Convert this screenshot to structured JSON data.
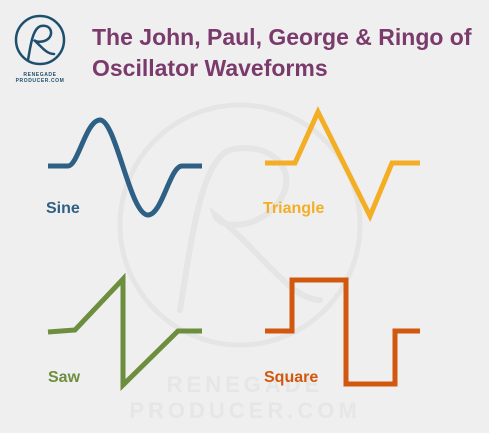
{
  "header": {
    "title_line1": "The John, Paul, George & Ringo of",
    "title_line2": "Oscillator Waveforms"
  },
  "logo": {
    "text": "RENEGADE PRODUCER.COM"
  },
  "watermark": {
    "text": "RENEGADE PRODUCER.COM"
  },
  "waveforms": [
    {
      "name": "Sine",
      "color": "#2e5f85",
      "icon": "sine-wave"
    },
    {
      "name": "Triangle",
      "color": "#f4ae25",
      "icon": "triangle-wave"
    },
    {
      "name": "Saw",
      "color": "#6e8e3f",
      "icon": "saw-wave"
    },
    {
      "name": "Square",
      "color": "#d2570f",
      "icon": "square-wave"
    }
  ],
  "colors": {
    "background": "#efefef",
    "title": "#7a3b6c",
    "logo": "#1e4f6e"
  }
}
